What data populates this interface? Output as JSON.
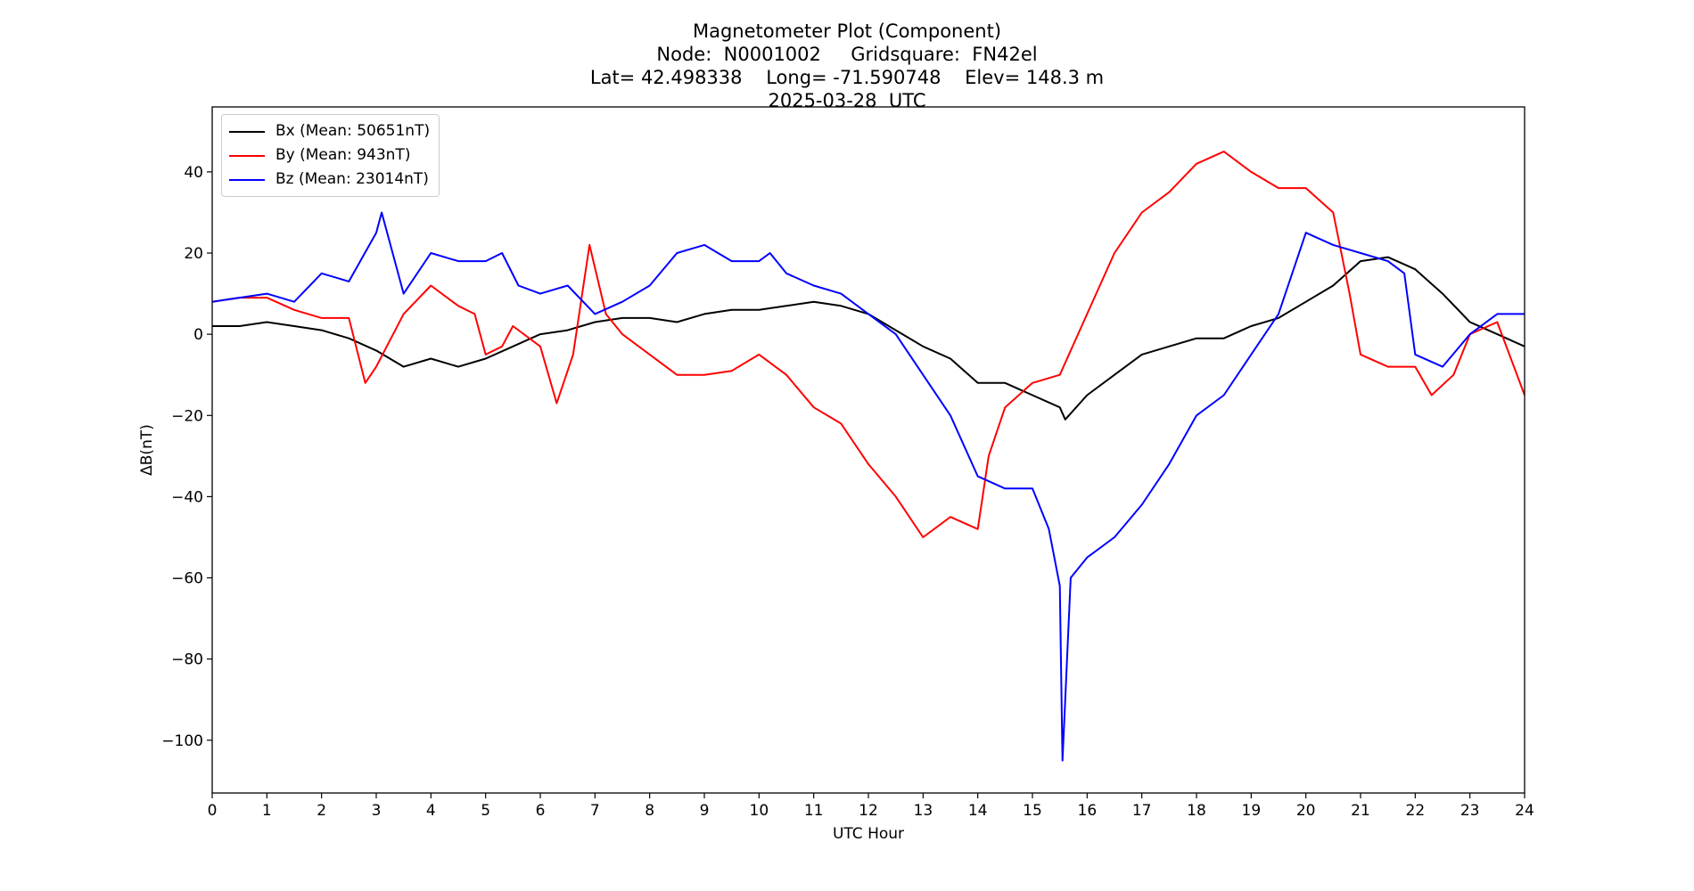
{
  "title": {
    "line1": "Magnetometer Plot (Component)",
    "line2": "Node:  N0001002     Gridsquare:  FN42el",
    "line3": "Lat= 42.498338    Long= -71.590748    Elev= 148.3 m",
    "line4": "2025-03-28  UTC"
  },
  "axes": {
    "xlabel": "UTC Hour",
    "ylabel": "ΔB(nT)"
  },
  "legend": [
    {
      "label": "Bx (Mean: 50651nT)",
      "color": "#000000"
    },
    {
      "label": "By (Mean: 943nT)",
      "color": "#ff0000"
    },
    {
      "label": "Bz (Mean: 23014nT)",
      "color": "#0000ff"
    }
  ],
  "chart_data": {
    "type": "line",
    "title": "Magnetometer Plot (Component) — Node: N0001002, Gridsquare: FN42el, Lat= 42.498338, Long= -71.590748, Elev= 148.3 m, 2025-03-28 UTC",
    "xlabel": "UTC Hour",
    "ylabel": "ΔB(nT)",
    "xlim": [
      0,
      24
    ],
    "ylim": [
      -113,
      56
    ],
    "xticks": [
      0,
      1,
      2,
      3,
      4,
      5,
      6,
      7,
      8,
      9,
      10,
      11,
      12,
      13,
      14,
      15,
      16,
      17,
      18,
      19,
      20,
      21,
      22,
      23,
      24
    ],
    "yticks": [
      -100,
      -80,
      -60,
      -40,
      -20,
      0,
      20,
      40
    ],
    "grid": false,
    "legend_position": "upper left",
    "series": [
      {
        "name": "Bx (Mean: 50651nT)",
        "color": "#000000",
        "x": [
          0,
          0.5,
          1,
          1.5,
          2,
          2.5,
          3,
          3.5,
          4,
          4.5,
          5,
          5.5,
          6,
          6.5,
          7,
          7.5,
          8,
          8.5,
          9,
          9.5,
          10,
          10.5,
          11,
          11.5,
          12,
          12.5,
          13,
          13.5,
          14,
          14.5,
          15,
          15.5,
          15.6,
          16,
          16.5,
          17,
          17.5,
          18,
          18.5,
          19,
          19.5,
          20,
          20.5,
          21,
          21.5,
          22,
          22.5,
          23,
          23.5,
          24
        ],
        "values": [
          2,
          2,
          3,
          2,
          1,
          -1,
          -4,
          -8,
          -6,
          -8,
          -6,
          -3,
          0,
          1,
          3,
          4,
          4,
          3,
          5,
          6,
          6,
          7,
          8,
          7,
          5,
          1,
          -3,
          -6,
          -12,
          -12,
          -15,
          -18,
          -21,
          -15,
          -10,
          -5,
          -3,
          -1,
          -1,
          2,
          4,
          8,
          12,
          18,
          19,
          16,
          10,
          3,
          0,
          -3
        ]
      },
      {
        "name": "By (Mean: 943nT)",
        "color": "#ff0000",
        "x": [
          0,
          0.5,
          1,
          1.5,
          2,
          2.5,
          2.8,
          3,
          3.5,
          4,
          4.5,
          4.8,
          5,
          5.3,
          5.5,
          6,
          6.3,
          6.6,
          6.9,
          7.2,
          7.5,
          8,
          8.5,
          9,
          9.5,
          10,
          10.5,
          11,
          11.5,
          12,
          12.5,
          13,
          13.5,
          14,
          14.2,
          14.5,
          15,
          15.5,
          16,
          16.5,
          17,
          17.5,
          18,
          18.5,
          19,
          19.5,
          20,
          20.5,
          20.8,
          21,
          21.5,
          22,
          22.3,
          22.7,
          23,
          23.5,
          24
        ],
        "values": [
          8,
          9,
          9,
          6,
          4,
          4,
          -12,
          -8,
          5,
          12,
          7,
          5,
          -5,
          -3,
          2,
          -3,
          -17,
          -5,
          22,
          5,
          0,
          -5,
          -10,
          -10,
          -9,
          -5,
          -10,
          -18,
          -22,
          -32,
          -40,
          -50,
          -45,
          -48,
          -30,
          -18,
          -12,
          -10,
          5,
          20,
          30,
          35,
          42,
          45,
          40,
          36,
          36,
          30,
          10,
          -5,
          -8,
          -8,
          -15,
          -10,
          0,
          3,
          -15
        ]
      },
      {
        "name": "Bz (Mean: 23014nT)",
        "color": "#0000ff",
        "x": [
          0,
          0.5,
          1,
          1.5,
          2,
          2.5,
          3,
          3.1,
          3.3,
          3.5,
          4,
          4.5,
          5,
          5.3,
          5.6,
          6,
          6.5,
          7,
          7.5,
          8,
          8.5,
          9,
          9.5,
          10,
          10.2,
          10.5,
          11,
          11.5,
          12,
          12.5,
          13,
          13.5,
          14,
          14.5,
          15,
          15.3,
          15.5,
          15.55,
          15.7,
          16,
          16.5,
          17,
          17.5,
          18,
          18.5,
          19,
          19.5,
          20,
          20.5,
          21,
          21.5,
          21.8,
          22,
          22.5,
          23,
          23.5,
          24
        ],
        "values": [
          8,
          9,
          10,
          8,
          15,
          13,
          25,
          30,
          20,
          10,
          20,
          18,
          18,
          20,
          12,
          10,
          12,
          5,
          8,
          12,
          20,
          22,
          18,
          18,
          20,
          15,
          12,
          10,
          5,
          0,
          -10,
          -20,
          -35,
          -38,
          -38,
          -48,
          -62,
          -105,
          -60,
          -55,
          -50,
          -42,
          -32,
          -20,
          -15,
          -5,
          5,
          25,
          22,
          20,
          18,
          15,
          -5,
          -8,
          0,
          5,
          5
        ]
      }
    ]
  }
}
